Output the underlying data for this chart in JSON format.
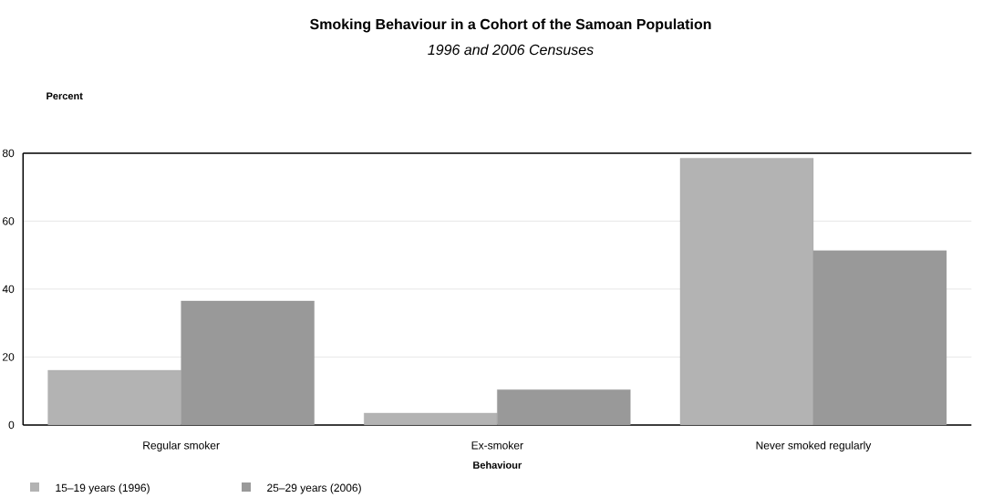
{
  "chart_data": {
    "type": "bar",
    "title": "Smoking Behaviour in a Cohort of the Samoan Population",
    "subtitle": "*1996 and 2006 Censuses*",
    "xlabel": "Behaviour",
    "ylabel": "Percent",
    "categories": [
      "Regular smoker",
      "Ex-smoker",
      "Never smoked regularly"
    ],
    "series": [
      {
        "name": "15–19 years (1996)",
        "color": "#b3b3b3",
        "values": [
          16.1,
          3.5,
          78.5
        ]
      },
      {
        "name": "25–29 years (2006)",
        "color": "#999999",
        "values": [
          36.5,
          10.4,
          51.3
        ]
      }
    ],
    "ylim": [
      0,
      80
    ],
    "yticks": [
      0,
      20,
      40,
      60,
      80
    ],
    "grid": "y",
    "legend": "bottom left"
  }
}
